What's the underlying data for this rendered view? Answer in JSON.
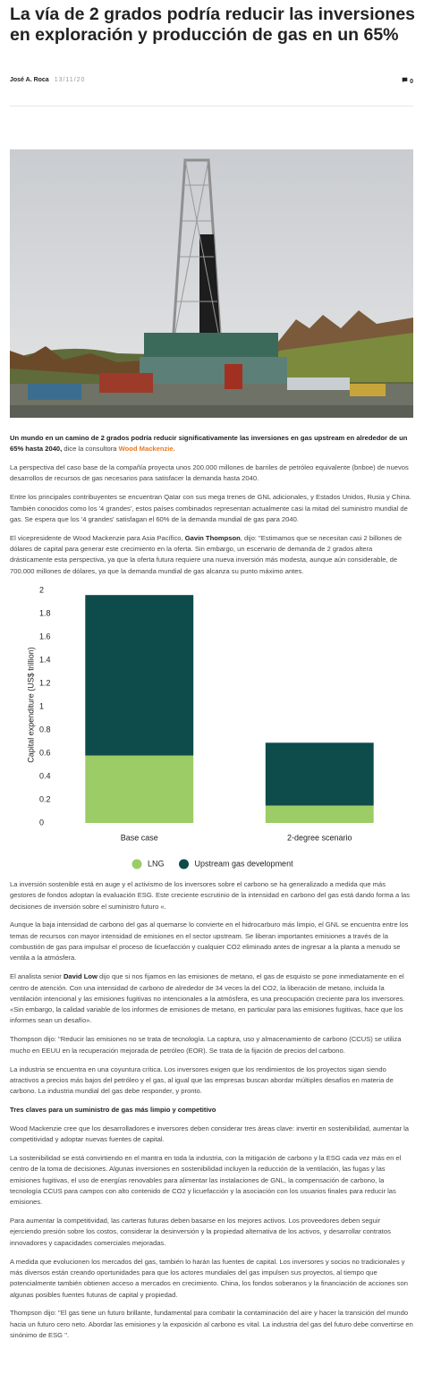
{
  "header": {
    "title": "La vía de 2 grados podría reducir las inversiones en exploración y producción de gas en un 65%",
    "author": "José A. Roca",
    "date": "13/11/20",
    "comments": "0"
  },
  "body": {
    "paragraphs": [
      [
        {
          "text": "Un mundo en un camino de 2 grados podría reducir significativamente las inversiones en gas upstream en alrededor de un 65% hasta 2040,",
          "bold": true
        },
        " dice la consultora ",
        {
          "text": "Wood Mackenzie.",
          "link": true
        }
      ],
      [
        "La perspectiva del caso base de la compañía proyecta unos 200.000 millones de barriles de petróleo equivalente (bnboe) de nuevos desarrollos de recursos de gas necesarios para satisfacer la demanda hasta 2040."
      ],
      [
        "Entre los principales contribuyentes se encuentran Qatar con sus mega trenes de GNL adicionales, y Estados Unidos, Rusia y China. También conocidos como los '4 grandes', estos países combinados representan actualmente casi la mitad del suministro mundial de gas. Se espera que los '4 grandes' satisfagan el 60% de la demanda mundial de gas para 2040."
      ],
      [
        "El vicepresidente de Wood Mackenzie para Asia Pacífico, ",
        {
          "text": "Gavin Thompson",
          "bold": true
        },
        ", dijo: \"Estimamos que se necesitan casi 2 billones de dólares de capital para generar este crecimiento en la oferta. Sin embargo, un escenario de demanda de 2 grados altera drásticamente esta perspectiva, ya que la oferta futura requiere una nueva inversión más modesta, aunque aún considerable, de 700.000 millones de dólares, ya que la demanda mundial de gas alcanza su punto máximo antes."
      ]
    ],
    "paragraphs_after_chart": [
      [
        "La inversión sostenible está en auge y el activismo de los inversores sobre el carbono se ha generalizado a medida que más gestores de fondos adoptan la evaluación ESG. Este creciente escrutinio de la intensidad en carbono del gas está dando forma a las decisiones de inversión sobre el suministro futuro «."
      ],
      [
        "Aunque la baja intensidad de carbono del gas al quemarse lo convierte en el hidrocarburo más limpio, el GNL se encuentra entre los temas de recursos con mayor intensidad de emisiones en el sector upstream. Se liberan importantes emisiones a través de la combustión de gas para impulsar el proceso de licuefacción y cualquier CO2 eliminado antes de ingresar a la planta a menudo se ventila a la atmósfera."
      ],
      [
        "El analista senior ",
        {
          "text": "David Low",
          "bold": true
        },
        " dijo que si nos fijamos en las emisiones de metano, el gas de esquisto se pone inmediatamente en el centro de atención. Con una intensidad de carbono de alrededor de 34 veces la del CO2, la liberación de metano, incluida la ventilación intencional y las emisiones fugitivas no intencionales a la atmósfera, es una preocupación creciente para los inversores. «Sin embargo, la calidad variable de los informes de emisiones de metano, en particular para las emisiones fugitivas, hace que los informes sean un desafío»."
      ],
      [
        "Thompson dijo: \"Reducir las emisiones no se trata de tecnología. La captura, uso y almacenamiento de carbono (CCUS) se utiliza mucho en EEUU en la recuperación mejorada de petróleo (EOR). Se trata de la fijación de precios del carbono."
      ],
      [
        "La industria se encuentra en una coyuntura crítica. Los inversores exigen que los rendimientos de los proyectos sigan siendo atractivos a precios más bajos del petróleo y el gas, al igual que las empresas buscan abordar múltiples desafíos en materia de carbono. La industria mundial del gas debe responder, y pronto."
      ],
      [
        {
          "text": "Tres claves para un suministro de gas más limpio y competitivo",
          "heading": true
        }
      ],
      [
        "Wood Mackenzie cree que los desarrolladores e inversores deben considerar tres áreas clave: invertir en sostenibilidad, aumentar la competitividad y adoptar nuevas fuentes de capital."
      ],
      [
        "La sostenibilidad se está convirtiendo en el mantra en toda la industria, con la mitigación de carbono y la ESG cada vez más en el centro de la toma de decisiones. Algunas inversiones en sostenibilidad incluyen la reducción de la ventilación, las fugas y las emisiones fugitivas, el uso de energías renovables para alimentar las instalaciones de GNL, la compensación de carbono, la tecnología CCUS para campos con alto contenido de CO2 y licuefacción y la asociación con los usuarios finales para reducir las emisiones."
      ],
      [
        "Para aumentar la competitividad, las carteras futuras deben basarse en los mejores activos. Los proveedores deben seguir ejerciendo presión sobre los costos, considerar la desinversión y la propiedad alternativa de los activos, y desarrollar contratos innovadores y capacidades comerciales mejoradas."
      ],
      [
        "A medida que evolucionen los mercados del gas, también lo harán las fuentes de capital. Los inversores y socios no tradicionales y más diversos están creando oportunidades para que los actores mundiales del gas impulsen sus proyectos, al tiempo que potencialmente también obtienen acceso a mercados en crecimiento. China, los fondos soberanos y la financiación de acciones son algunas posibles fuentes futuras de capital y propiedad."
      ],
      [
        "Thompson dijo: \"El gas tiene un futuro brillante, fundamental para combatir la contaminación del aire y hacer la transición del mundo hacia un futuro cero neto. Abordar las emisiones y la exposición al carbono es vital. La industria del gas del futuro debe convertirse en sinónimo de ESG \"."
      ]
    ]
  },
  "chart_data": {
    "type": "stacked_bar",
    "y_label": "Capital expenditure (US$ trillion)",
    "categories": [
      "Base case",
      "2-degree scenario"
    ],
    "series": [
      {
        "name": "LNG",
        "color": "#9ccc65",
        "values": [
          0.58,
          0.15
        ]
      },
      {
        "name": "Upstream gas development",
        "color": "#0e4b4b",
        "values": [
          1.38,
          0.54
        ]
      }
    ],
    "ylim": [
      0,
      2
    ],
    "yticks": [
      0,
      0.2,
      0.4,
      0.6,
      0.8,
      1,
      1.2,
      1.4,
      1.6,
      1.8,
      2
    ],
    "grid": false
  }
}
